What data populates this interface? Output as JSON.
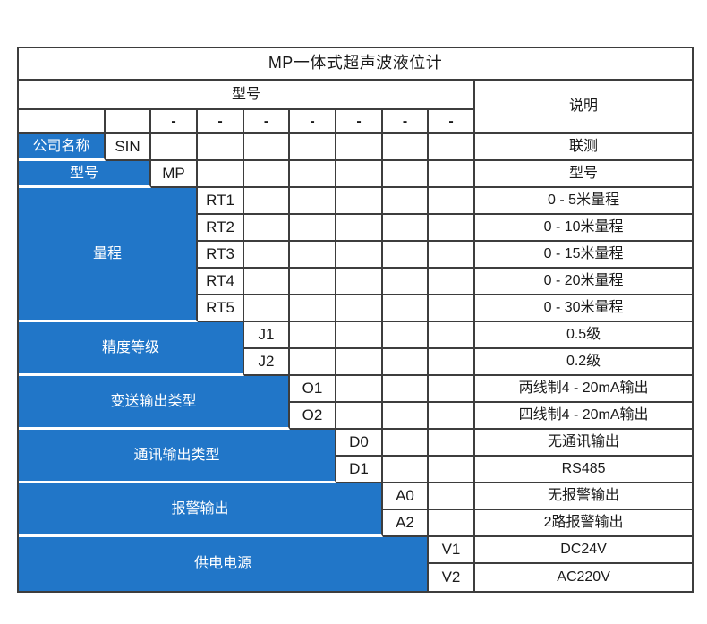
{
  "title": "MP一体式超声波液位计",
  "header": {
    "model_label": "型号",
    "description_label": "说明",
    "dash": "-",
    "dash_count": 7
  },
  "sections": [
    {
      "label": "公司名称",
      "label_span": 1,
      "rows": [
        {
          "code": "SIN",
          "desc": "联测"
        }
      ]
    },
    {
      "label": "型号",
      "label_span": 2,
      "rows": [
        {
          "code": "MP",
          "desc": "型号"
        }
      ]
    },
    {
      "label": "量程",
      "label_span": 3,
      "rows": [
        {
          "code": "RT1",
          "desc": "0 - 5米量程"
        },
        {
          "code": "RT2",
          "desc": "0 - 10米量程"
        },
        {
          "code": "RT3",
          "desc": "0 - 15米量程"
        },
        {
          "code": "RT4",
          "desc": "0 - 20米量程"
        },
        {
          "code": "RT5",
          "desc": "0 - 30米量程"
        }
      ]
    },
    {
      "label": "精度等级",
      "label_span": 4,
      "rows": [
        {
          "code": "J1",
          "desc": "0.5级"
        },
        {
          "code": "J2",
          "desc": "0.2级"
        }
      ]
    },
    {
      "label": "变送输出类型",
      "label_span": 5,
      "rows": [
        {
          "code": "O1",
          "desc": "两线制4 - 20mA输出"
        },
        {
          "code": "O2",
          "desc": "四线制4 - 20mA输出"
        }
      ]
    },
    {
      "label": "通讯输出类型",
      "label_span": 6,
      "rows": [
        {
          "code": "D0",
          "desc": "无通讯输出"
        },
        {
          "code": "D1",
          "desc": "RS485"
        }
      ]
    },
    {
      "label": "报警输出",
      "label_span": 7,
      "rows": [
        {
          "code": "A0",
          "desc": "无报警输出"
        },
        {
          "code": "A2",
          "desc": "2路报警输出"
        }
      ]
    },
    {
      "label": "供电电源",
      "label_span": 8,
      "rows": [
        {
          "code": "V1",
          "desc": "DC24V"
        },
        {
          "code": "V2",
          "desc": "AC220V"
        }
      ]
    }
  ],
  "colors": {
    "accent_blue": "#2176c8",
    "border": "#3d3d3d",
    "text": "#1a1a1a",
    "label_text": "#ffffff",
    "background": "#ffffff"
  }
}
